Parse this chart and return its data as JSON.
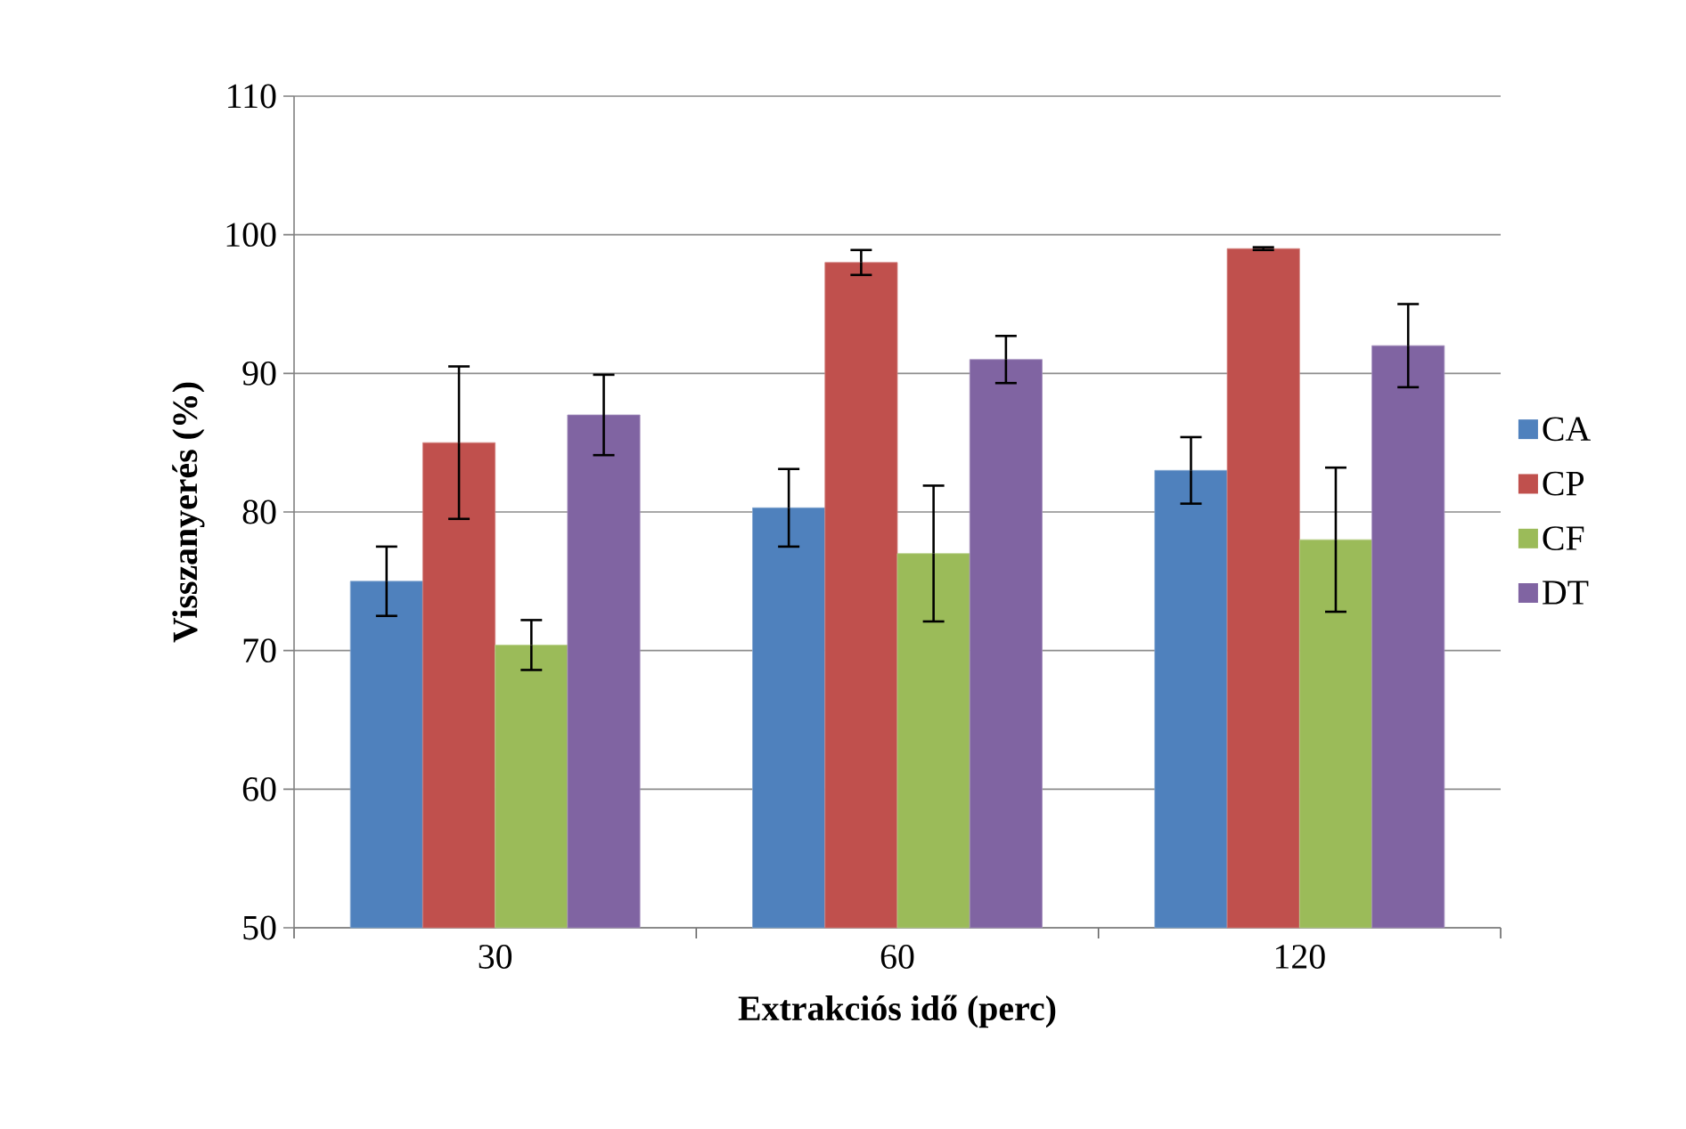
{
  "chart_data": {
    "type": "bar",
    "xlabel": "Extrakciós idő (perc)",
    "ylabel": "Visszanyerés (%)",
    "categories": [
      "30",
      "60",
      "120"
    ],
    "series": [
      {
        "name": "CA",
        "color": "#4f81bd",
        "values": [
          75,
          80.3,
          83
        ],
        "errors": [
          2.5,
          2.8,
          2.4
        ]
      },
      {
        "name": "CP",
        "color": "#c0504d",
        "values": [
          85,
          98,
          99
        ],
        "errors": [
          5.5,
          0.9,
          0.1
        ]
      },
      {
        "name": "CF",
        "color": "#9bbb59",
        "values": [
          70.4,
          77,
          78
        ],
        "errors": [
          1.8,
          4.9,
          5.2
        ]
      },
      {
        "name": "DT",
        "color": "#8064a2",
        "values": [
          87,
          91,
          92
        ],
        "errors": [
          2.9,
          1.7,
          3
        ]
      }
    ],
    "ylim": [
      50,
      110
    ],
    "yticks": [
      50,
      60,
      70,
      80,
      90,
      100,
      110
    ],
    "grid": "y",
    "legend": "right"
  }
}
